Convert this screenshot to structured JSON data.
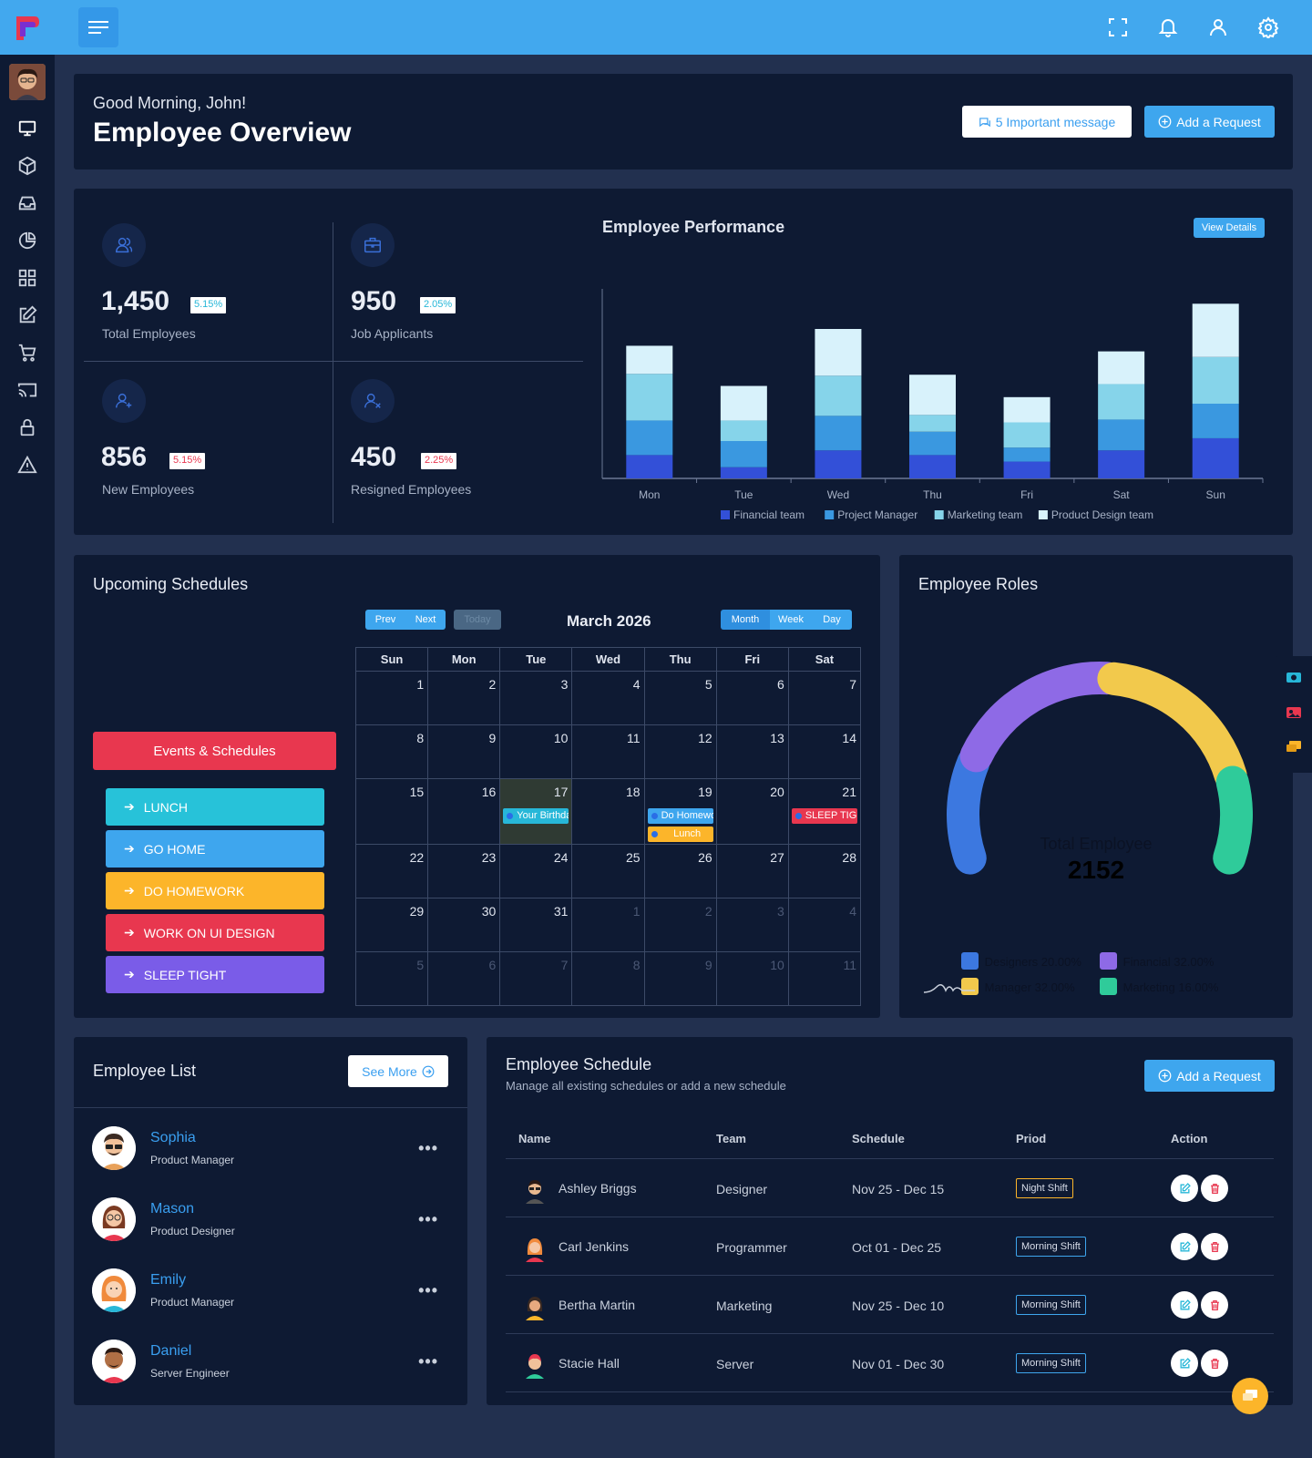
{
  "header": {
    "greeting": "Good Morning, John!",
    "title": "Employee Overview",
    "important_btn": "5 Important message",
    "add_request_btn": "Add a Request"
  },
  "stats": [
    {
      "value": "1,450",
      "change": "5.15%",
      "label": "Total Employees",
      "trend_color": "#27b7d8"
    },
    {
      "value": "950",
      "change": "2.05%",
      "label": "Job Applicants",
      "trend_color": "#27b7d8"
    },
    {
      "value": "856",
      "change": "5.15%",
      "label": "New Employees",
      "trend_color": "#e8374f"
    },
    {
      "value": "450",
      "change": "2.25%",
      "label": "Resigned Employees",
      "trend_color": "#e8374f"
    }
  ],
  "performance": {
    "title": "Employee Performance",
    "view_details": "View Details"
  },
  "chart_data": {
    "type": "bar",
    "stacked": true,
    "title": "Employee Performance",
    "categories": [
      "Mon",
      "Tue",
      "Wed",
      "Thu",
      "Fri",
      "Sat",
      "Sun"
    ],
    "series": [
      {
        "name": "Financial team",
        "color": "#3350d8",
        "values": [
          25,
          12,
          30,
          25,
          18,
          30,
          43
        ]
      },
      {
        "name": "Project Manager",
        "color": "#3a98e0",
        "values": [
          37,
          28,
          37,
          25,
          15,
          33,
          37
        ]
      },
      {
        "name": "Marketing team",
        "color": "#86d4ea",
        "values": [
          50,
          22,
          43,
          18,
          27,
          38,
          50
        ]
      },
      {
        "name": "Product Design team",
        "color": "#d8f2fb",
        "values": [
          30,
          37,
          50,
          43,
          27,
          35,
          57
        ]
      }
    ],
    "legend_position": "bottom",
    "grid": false
  },
  "calendar": {
    "section_title": "Upcoming Schedules",
    "month_label": "March 2026",
    "prev": "Prev",
    "next": "Next",
    "today": "Today",
    "views": [
      "Month",
      "Week",
      "Day"
    ],
    "weekdays": [
      "Sun",
      "Mon",
      "Tue",
      "Wed",
      "Thu",
      "Fri",
      "Sat"
    ],
    "weeks": [
      [
        "1",
        "2",
        "3",
        "4",
        "5",
        "6",
        "7"
      ],
      [
        "8",
        "9",
        "10",
        "11",
        "12",
        "13",
        "14"
      ],
      [
        "15",
        "16",
        "17",
        "18",
        "19",
        "20",
        "21"
      ],
      [
        "22",
        "23",
        "24",
        "25",
        "26",
        "27",
        "28"
      ],
      [
        "29",
        "30",
        "31",
        "1",
        "2",
        "3",
        "4"
      ],
      [
        "5",
        "6",
        "7",
        "8",
        "9",
        "10",
        "11"
      ]
    ],
    "events": {
      "your_birthday": "Your Birthday",
      "do_homework": "Do Homework",
      "lunch": "Lunch",
      "sleep_tight": "SLEEP TIGHT"
    },
    "events_header": "Events & Schedules",
    "event_buttons": [
      {
        "label": "LUNCH",
        "color": "#27c2d9"
      },
      {
        "label": "GO HOME",
        "color": "#3ea6ee"
      },
      {
        "label": "DO HOMEWORK",
        "color": "#fcb52a"
      },
      {
        "label": "WORK ON UI DESIGN",
        "color": "#e8374f"
      },
      {
        "label": "SLEEP TIGHT",
        "color": "#7a5ce8"
      }
    ]
  },
  "roles": {
    "title": "Employee Roles",
    "center_label": "Total Employee",
    "center_value": "2152",
    "segments": [
      {
        "name": "Designers",
        "pct": "20.00%",
        "value": 20,
        "color": "#3c78e0"
      },
      {
        "name": "Financial",
        "pct": "32.00%",
        "value": 32,
        "color": "#8e6ae6"
      },
      {
        "name": "Manager",
        "pct": "32.00%",
        "value": 32,
        "color": "#f2c94c"
      },
      {
        "name": "Marketing",
        "pct": "16.00%",
        "value": 16,
        "color": "#2fcb9a"
      }
    ]
  },
  "employee_list": {
    "title": "Employee List",
    "see_more": "See More",
    "items": [
      {
        "name": "Sophia",
        "role": "Product Manager"
      },
      {
        "name": "Mason",
        "role": "Product Designer"
      },
      {
        "name": "Emily",
        "role": "Product Manager"
      },
      {
        "name": "Daniel",
        "role": "Server Engineer"
      }
    ]
  },
  "schedule": {
    "title": "Employee Schedule",
    "subtitle": "Manage all existing schedules or add a new schedule",
    "add_btn": "Add a Request",
    "columns": [
      "Name",
      "Team",
      "Schedule",
      "Priod",
      "Action"
    ],
    "rows": [
      {
        "name": "Ashley Briggs",
        "team": "Designer",
        "schedule": "Nov 25 - Dec 15",
        "period": "Night Shift",
        "period_color": "#fcb52a"
      },
      {
        "name": "Carl Jenkins",
        "team": "Programmer",
        "schedule": "Oct 01 - Dec 25",
        "period": "Morning Shift",
        "period_color": "#3ea6ee"
      },
      {
        "name": "Bertha Martin",
        "team": "Marketing",
        "schedule": "Nov 25 - Dec 10",
        "period": "Morning Shift",
        "period_color": "#3ea6ee"
      },
      {
        "name": "Stacie Hall",
        "team": "Server",
        "schedule": "Nov 01 - Dec 30",
        "period": "Morning Shift",
        "period_color": "#3ea6ee"
      }
    ]
  },
  "icons": {
    "topbar": [
      "fullscreen-icon",
      "bell-icon",
      "user-icon",
      "gear-icon"
    ],
    "sidebar": [
      "monitor-icon",
      "cube-icon",
      "inbox-icon",
      "pie-chart-icon",
      "grid-icon",
      "edit-icon",
      "cart-icon",
      "cast-icon",
      "lock-icon",
      "alert-icon"
    ]
  }
}
